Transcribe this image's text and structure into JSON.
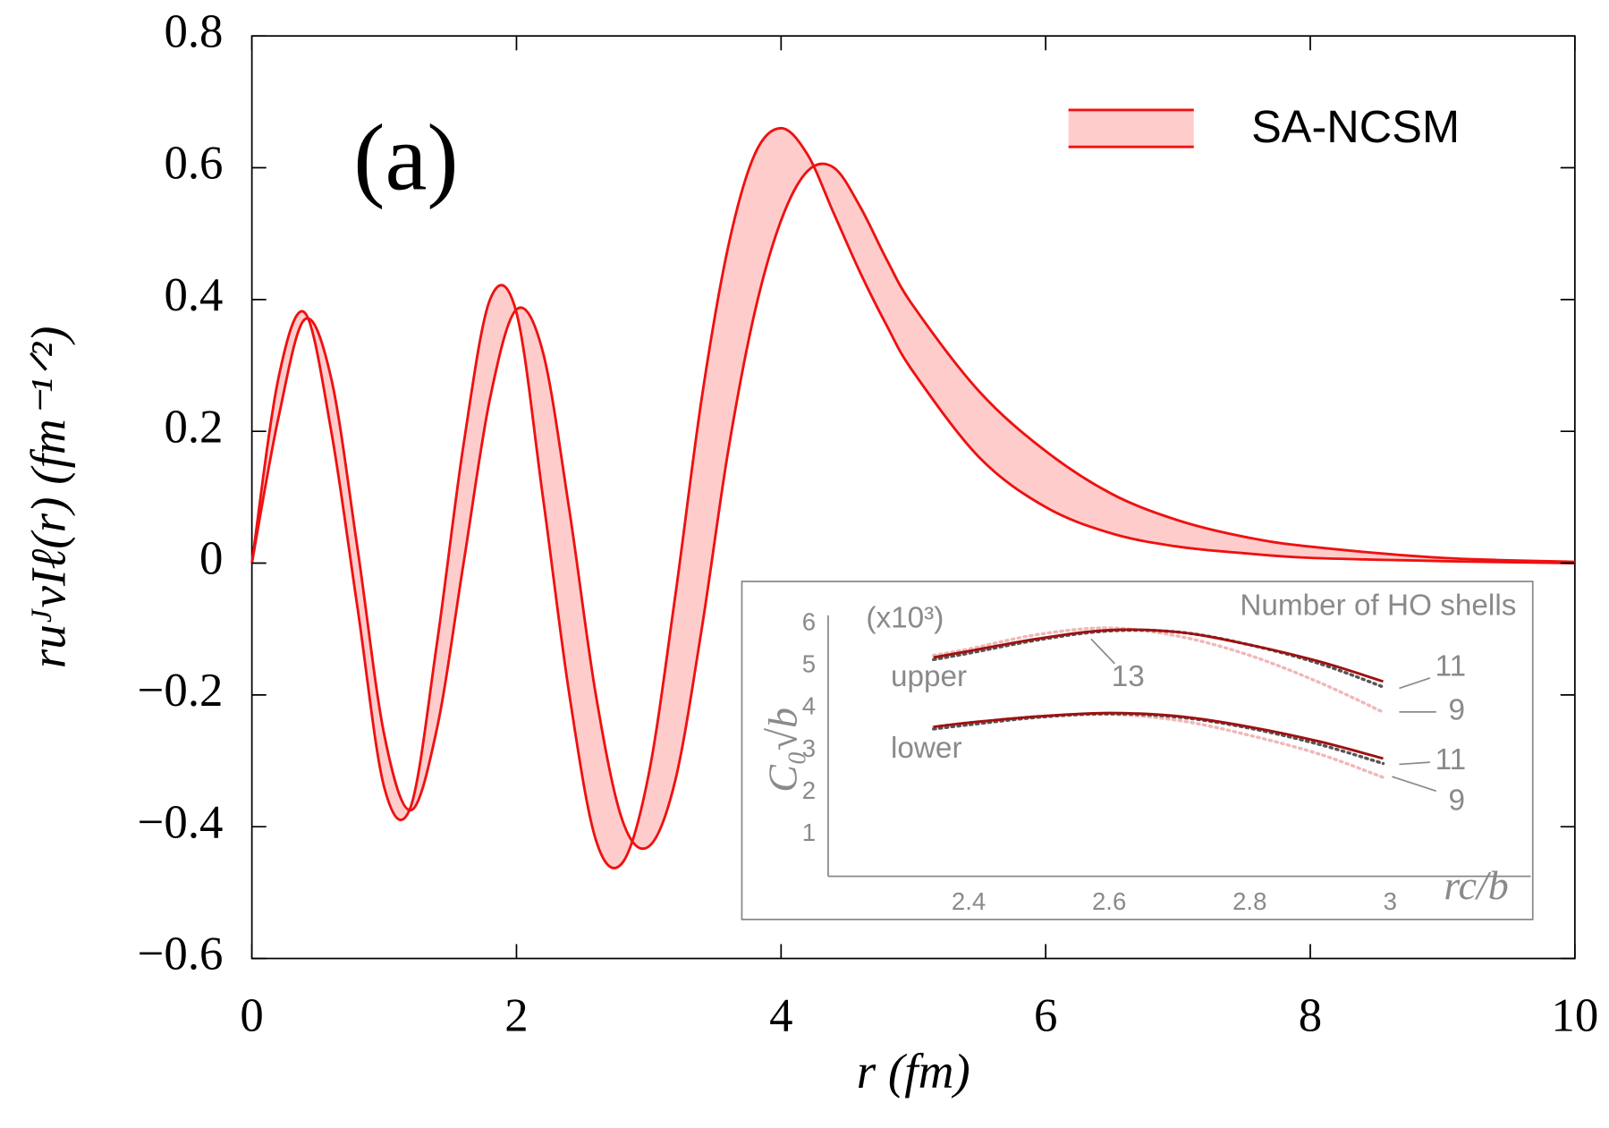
{
  "chart_data": [
    {
      "type": "band",
      "annotation": "(a)",
      "xlabel": "r (fm)",
      "ylabel": "ruᴶνIℓ(r)  (fm⁻¹ᐟ²)",
      "xlim": [
        0,
        10
      ],
      "ylim": [
        -0.6,
        0.8
      ],
      "xticks": [
        0,
        2,
        4,
        6,
        8,
        10
      ],
      "yticks": [
        {
          "value": -0.6,
          "label": "−0.6"
        },
        {
          "value": -0.4,
          "label": "−0.4"
        },
        {
          "value": -0.2,
          "label": "−0.2"
        },
        0,
        0.2,
        0.4,
        0.6,
        0.8
      ],
      "legend": "upper right",
      "x": [
        0,
        0.2,
        0.4,
        0.6,
        0.8,
        1.0,
        1.2,
        1.4,
        1.6,
        1.8,
        2.0,
        2.2,
        2.4,
        2.6,
        2.8,
        3.0,
        3.2,
        3.4,
        3.6,
        3.8,
        4.0,
        4.2,
        4.4,
        4.6,
        4.8,
        5.0,
        5.5,
        6,
        6.5,
        7,
        7.5,
        8,
        9,
        10
      ],
      "series": [
        {
          "name": "SA-NCSM",
          "color": "#ee1111",
          "fill": "#ffcccc",
          "values": [
            0,
            0.28,
            0.38,
            0.2,
            -0.07,
            -0.34,
            -0.37,
            -0.12,
            0.18,
            0.4,
            0.38,
            0.1,
            -0.2,
            -0.42,
            -0.455,
            -0.32,
            -0.05,
            0.25,
            0.48,
            0.62,
            0.66,
            0.62,
            0.53,
            0.44,
            0.36,
            0.29,
            0.16,
            0.085,
            0.045,
            0.025,
            0.015,
            0.008,
            0.003,
            0
          ],
          "values2": [
            0,
            0.22,
            0.37,
            0.28,
            0.02,
            -0.26,
            -0.375,
            -0.25,
            0.0,
            0.25,
            0.385,
            0.32,
            0.08,
            -0.2,
            -0.39,
            -0.43,
            -0.33,
            -0.1,
            0.17,
            0.38,
            0.52,
            0.595,
            0.6,
            0.54,
            0.46,
            0.39,
            0.26,
            0.17,
            0.105,
            0.065,
            0.04,
            0.025,
            0.008,
            0.002
          ]
        }
      ]
    },
    {
      "type": "line",
      "xlabel": "rc/b",
      "ylabel": "C₀√b",
      "xlim": [
        2.2,
        3.2
      ],
      "ylim": [
        0,
        6.2
      ],
      "xticks": [
        2.4,
        2.6,
        2.8,
        3
      ],
      "yticks": [
        1,
        2,
        3,
        4,
        5,
        6
      ],
      "annotations": [
        "Number of HO shells",
        "(x10³)",
        "upper",
        "lower",
        "13",
        "11",
        "9",
        "11",
        "9"
      ],
      "x": [
        2.35,
        2.4,
        2.5,
        2.6,
        2.7,
        2.8,
        2.9,
        2.99
      ],
      "series": [
        {
          "color": "#f0b8b8",
          "dash": "dotted",
          "values": [
            5.25,
            5.4,
            5.75,
            5.9,
            5.7,
            5.25,
            4.6,
            3.9
          ]
        },
        {
          "color": "#f0b8b8",
          "dash": "dotted",
          "values": [
            3.55,
            3.65,
            3.8,
            3.85,
            3.7,
            3.35,
            2.9,
            2.35
          ]
        },
        {
          "color": "#555555",
          "dash": "dotted",
          "values": [
            5.15,
            5.3,
            5.62,
            5.83,
            5.8,
            5.5,
            5.05,
            4.5
          ]
        },
        {
          "color": "#555555",
          "dash": "dotted",
          "values": [
            3.5,
            3.6,
            3.78,
            3.86,
            3.78,
            3.52,
            3.13,
            2.68
          ]
        },
        {
          "color": "#a01010",
          "dash": "solid",
          "values": [
            5.2,
            5.35,
            5.65,
            5.85,
            5.8,
            5.5,
            5.1,
            4.63
          ]
        },
        {
          "color": "#a01010",
          "dash": "solid",
          "values": [
            3.55,
            3.65,
            3.8,
            3.88,
            3.8,
            3.55,
            3.2,
            2.8
          ]
        }
      ]
    }
  ]
}
